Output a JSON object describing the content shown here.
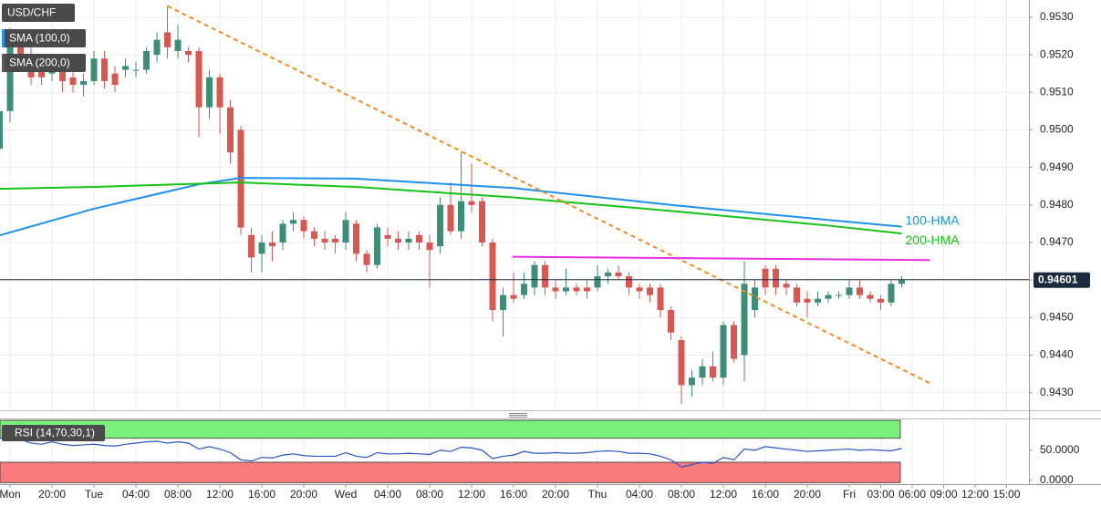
{
  "chart_data": [
    {
      "type": "candlestick",
      "title": "USD/CHF",
      "indicators": [
        {
          "name": "SMA (100,0)",
          "color": "#2196f3"
        },
        {
          "name": "SMA (200,0)",
          "color": "#5a5a5a"
        }
      ],
      "x": [
        -9,
        -8,
        -7,
        -6,
        -5,
        -4,
        -3,
        -2,
        -1,
        0,
        1,
        2,
        3,
        4,
        5,
        6,
        7,
        8,
        9,
        10,
        11,
        12,
        13,
        14,
        15,
        16,
        17,
        18,
        19,
        20,
        21,
        22,
        23,
        24,
        25,
        26,
        27,
        28,
        29,
        30,
        31,
        32,
        33,
        34,
        35,
        36,
        37,
        38,
        39,
        40,
        41,
        42,
        43,
        44,
        45,
        46,
        47,
        48,
        49,
        50,
        51,
        52,
        53,
        54,
        55,
        56,
        57,
        58,
        59,
        60,
        61,
        62,
        63,
        64,
        65,
        66,
        67,
        68,
        69,
        70,
        71,
        72,
        73,
        74,
        75,
        76,
        77
      ],
      "open": [
        0.9495,
        0.9505,
        0.9524,
        0.952,
        0.9518,
        0.9515,
        0.9518,
        0.9514,
        0.9512,
        0.9513,
        0.9519,
        0.9515,
        0.9516,
        0.9516,
        0.9516,
        0.952,
        0.9526,
        0.9521,
        0.9521,
        0.9521,
        0.9506,
        0.9514,
        0.9506,
        0.95,
        0.9472,
        0.9467,
        0.947,
        0.947,
        0.9475,
        0.9476,
        0.9473,
        0.9471,
        0.9471,
        0.947,
        0.9475,
        0.9467,
        0.9464,
        0.9472,
        0.9471,
        0.947,
        0.9472,
        0.947,
        0.9469,
        0.948,
        0.9473,
        0.9481,
        0.9481,
        0.947,
        0.9452,
        0.9456,
        0.9456,
        0.9458,
        0.9464,
        0.9458,
        0.9457,
        0.9458,
        0.9458,
        0.9458,
        0.9461,
        0.9462,
        0.9461,
        0.9458,
        0.9458,
        0.9458,
        0.9452,
        0.9444,
        0.9432,
        0.9434,
        0.9437,
        0.9434,
        0.9448,
        0.944,
        0.9452,
        0.9463,
        0.9463,
        0.9459,
        0.9458,
        0.9455,
        0.9454,
        0.9455,
        0.9456,
        0.9456,
        0.9458,
        0.9456,
        0.9455,
        0.9454,
        0.9459
      ],
      "high": [
        0.9508,
        0.9527,
        0.9526,
        0.9522,
        0.952,
        0.952,
        0.9519,
        0.9516,
        0.9515,
        0.9521,
        0.9521,
        0.9517,
        0.9519,
        0.9518,
        0.9522,
        0.9526,
        0.9533,
        0.9528,
        0.9522,
        0.9522,
        0.9516,
        0.9515,
        0.9508,
        0.9501,
        0.9474,
        0.9472,
        0.9473,
        0.9476,
        0.9478,
        0.9477,
        0.9474,
        0.9473,
        0.9472,
        0.9478,
        0.9476,
        0.9468,
        0.9475,
        0.9474,
        0.9473,
        0.9473,
        0.9473,
        0.9472,
        0.9482,
        0.9486,
        0.9494,
        0.9491,
        0.9482,
        0.9471,
        0.9458,
        0.9462,
        0.9462,
        0.9465,
        0.9465,
        0.946,
        0.9463,
        0.9459,
        0.946,
        0.9464,
        0.9463,
        0.9464,
        0.9462,
        0.9459,
        0.9459,
        0.9459,
        0.9453,
        0.9445,
        0.9436,
        0.9439,
        0.9441,
        0.9449,
        0.9449,
        0.9465,
        0.946,
        0.9464,
        0.9464,
        0.946,
        0.9459,
        0.9457,
        0.9457,
        0.9457,
        0.9457,
        0.946,
        0.946,
        0.9457,
        0.9456,
        0.946,
        0.9461
      ],
      "low": [
        0.9492,
        0.9502,
        0.9518,
        0.9512,
        0.9512,
        0.9513,
        0.951,
        0.951,
        0.9509,
        0.9512,
        0.9511,
        0.951,
        0.9514,
        0.9514,
        0.9515,
        0.9518,
        0.9519,
        0.9519,
        0.9518,
        0.9498,
        0.9503,
        0.9499,
        0.9491,
        0.9472,
        0.9462,
        0.9462,
        0.9465,
        0.9468,
        0.9473,
        0.9471,
        0.9469,
        0.9468,
        0.9467,
        0.9468,
        0.9465,
        0.9462,
        0.9463,
        0.9469,
        0.9468,
        0.9468,
        0.9468,
        0.9458,
        0.9467,
        0.9472,
        0.9471,
        0.9478,
        0.9469,
        0.9449,
        0.9445,
        0.9454,
        0.9455,
        0.9456,
        0.9456,
        0.9455,
        0.9456,
        0.9456,
        0.9455,
        0.9457,
        0.9459,
        0.946,
        0.9456,
        0.9455,
        0.9454,
        0.945,
        0.9444,
        0.9427,
        0.9429,
        0.9432,
        0.9433,
        0.9432,
        0.9438,
        0.9433,
        0.945,
        0.9456,
        0.9456,
        0.9456,
        0.9453,
        0.945,
        0.9453,
        0.9454,
        0.9455,
        0.9455,
        0.9455,
        0.9454,
        0.9452,
        0.9453,
        0.9458
      ],
      "close": [
        0.9505,
        0.9524,
        0.952,
        0.9514,
        0.9514,
        0.9518,
        0.9513,
        0.9512,
        0.9513,
        0.9519,
        0.9513,
        0.9512,
        0.9517,
        0.9516,
        0.9521,
        0.9524,
        0.9522,
        0.9524,
        0.952,
        0.9506,
        0.9514,
        0.9506,
        0.9494,
        0.9474,
        0.9466,
        0.947,
        0.9469,
        0.9475,
        0.9476,
        0.9473,
        0.9471,
        0.947,
        0.947,
        0.9476,
        0.9467,
        0.9464,
        0.9474,
        0.9471,
        0.947,
        0.9471,
        0.947,
        0.9468,
        0.948,
        0.9473,
        0.9481,
        0.948,
        0.947,
        0.9452,
        0.9456,
        0.9455,
        0.9459,
        0.9464,
        0.9458,
        0.9457,
        0.9458,
        0.9457,
        0.9457,
        0.9461,
        0.9462,
        0.9461,
        0.9458,
        0.9457,
        0.9456,
        0.9452,
        0.9446,
        0.9432,
        0.9434,
        0.9437,
        0.9434,
        0.9448,
        0.9439,
        0.9459,
        0.9458,
        0.9458,
        0.9458,
        0.9458,
        0.9454,
        0.9454,
        0.9455,
        0.9456,
        0.9456,
        0.9458,
        0.9456,
        0.9455,
        0.9454,
        0.9459,
        0.946
      ],
      "up_color": "#3a8f76",
      "down_color": "#d9574f",
      "xlim": [
        -8.96,
        89.13
      ],
      "ylim": [
        0.94253,
        0.95346
      ],
      "xticks": [
        {
          "value": -8,
          "label": "Mon"
        },
        {
          "value": -4,
          "label": "20:00"
        },
        {
          "value": 0,
          "label": "Tue"
        },
        {
          "value": 4,
          "label": "04:00"
        },
        {
          "value": 8,
          "label": "08:00"
        },
        {
          "value": 12,
          "label": "12:00"
        },
        {
          "value": 16,
          "label": "16:00"
        },
        {
          "value": 20,
          "label": "20:00"
        },
        {
          "value": 24,
          "label": "Wed"
        },
        {
          "value": 28,
          "label": "04:00"
        },
        {
          "value": 32,
          "label": "08:00"
        },
        {
          "value": 36,
          "label": "12:00"
        },
        {
          "value": 40,
          "label": "16:00"
        },
        {
          "value": 44,
          "label": "20:00"
        },
        {
          "value": 48,
          "label": "Thu"
        },
        {
          "value": 52,
          "label": "04:00"
        },
        {
          "value": 56,
          "label": "08:00"
        },
        {
          "value": 60,
          "label": "12:00"
        },
        {
          "value": 64,
          "label": "16:00"
        },
        {
          "value": 68,
          "label": "20:00"
        },
        {
          "value": 72,
          "label": "Fri"
        },
        {
          "value": 75,
          "label": "03:00"
        },
        {
          "value": 78,
          "label": "06:00"
        },
        {
          "value": 81,
          "label": "09:00"
        },
        {
          "value": 84,
          "label": "12:00"
        },
        {
          "value": 87,
          "label": "15:00"
        }
      ],
      "yticks": [
        {
          "value": 0.943,
          "label": "0.9430"
        },
        {
          "value": 0.944,
          "label": "0.9440"
        },
        {
          "value": 0.945,
          "label": "0.9450"
        },
        {
          "value": 0.946,
          "label": "0.9460"
        },
        {
          "value": 0.947,
          "label": "0.9470"
        },
        {
          "value": 0.948,
          "label": "0.9480"
        },
        {
          "value": 0.949,
          "label": "0.9490"
        },
        {
          "value": 0.95,
          "label": "0.9500"
        },
        {
          "value": 0.951,
          "label": "0.9510"
        },
        {
          "value": 0.952,
          "label": "0.9520"
        },
        {
          "value": 0.953,
          "label": "0.9530"
        }
      ],
      "grid": true,
      "series": [
        {
          "name": "100-HMA",
          "color": "#1e90ee",
          "x": [
            -9,
            0,
            10,
            14,
            25,
            40,
            55,
            70,
            77
          ],
          "values": [
            0.94719,
            0.9479,
            0.94855,
            0.94872,
            0.9487,
            0.94845,
            0.948,
            0.9476,
            0.94742
          ]
        },
        {
          "name": "200-HMA",
          "color": "#17c317",
          "x": [
            -9,
            0,
            14,
            25,
            40,
            55,
            70,
            77
          ],
          "values": [
            0.94843,
            0.94848,
            0.9486,
            0.94848,
            0.9482,
            0.94784,
            0.94745,
            0.94724
          ]
        }
      ],
      "trendlines": [
        {
          "color": "#f58a1f",
          "dashed": true,
          "x": [
            7,
            79.7
          ],
          "values": [
            0.9533,
            0.94325
          ]
        },
        {
          "color": "#e82ee0",
          "dashed": false,
          "x": [
            39.9,
            79.7
          ],
          "values": [
            0.94662,
            0.94653
          ]
        }
      ],
      "last_price": 0.94601,
      "last_price_color": "#1c2a40"
    },
    {
      "type": "line",
      "title": "RSI (14,70,30,1)",
      "x": [
        -9,
        -8,
        -7,
        -6,
        -5,
        -4,
        -3,
        -2,
        -1,
        0,
        1,
        2,
        3,
        4,
        5,
        6,
        7,
        8,
        9,
        10,
        11,
        12,
        13,
        14,
        15,
        16,
        17,
        18,
        19,
        20,
        21,
        22,
        23,
        24,
        25,
        26,
        27,
        28,
        29,
        30,
        31,
        32,
        33,
        34,
        35,
        36,
        37,
        38,
        39,
        40,
        41,
        42,
        43,
        44,
        45,
        46,
        47,
        48,
        49,
        50,
        51,
        52,
        53,
        54,
        55,
        56,
        57,
        58,
        59,
        60,
        61,
        62,
        63,
        64,
        65,
        66,
        67,
        68,
        69,
        70,
        71,
        72,
        73,
        74,
        75,
        76,
        77
      ],
      "values": [
        70,
        72,
        68,
        62,
        60,
        64,
        60,
        58,
        59,
        60,
        58,
        57,
        60,
        62,
        64,
        65,
        62,
        64,
        62,
        52,
        56,
        52,
        46,
        34,
        32,
        38,
        37,
        42,
        44,
        41,
        40,
        40,
        40,
        46,
        40,
        38,
        46,
        44,
        44,
        45,
        44,
        43,
        50,
        48,
        55,
        54,
        50,
        36,
        40,
        42,
        48,
        45,
        45,
        46,
        45,
        45,
        46,
        48,
        49,
        48,
        45,
        45,
        44,
        40,
        34,
        22,
        26,
        30,
        28,
        38,
        34,
        52,
        50,
        56,
        54,
        52,
        50,
        48,
        49,
        50,
        51,
        52,
        50,
        51,
        50,
        49,
        53
      ],
      "color": "#2a55c8",
      "ylim": [
        -5,
        100
      ],
      "yticks": [
        {
          "value": 50,
          "label": "50.0000"
        },
        {
          "value": 0,
          "label": "0.0000"
        }
      ],
      "bands": [
        {
          "range": [
            70,
            100
          ],
          "color": "#7af07a"
        },
        {
          "range": [
            -4,
            30
          ],
          "color": "#fa7b7b"
        }
      ]
    }
  ]
}
